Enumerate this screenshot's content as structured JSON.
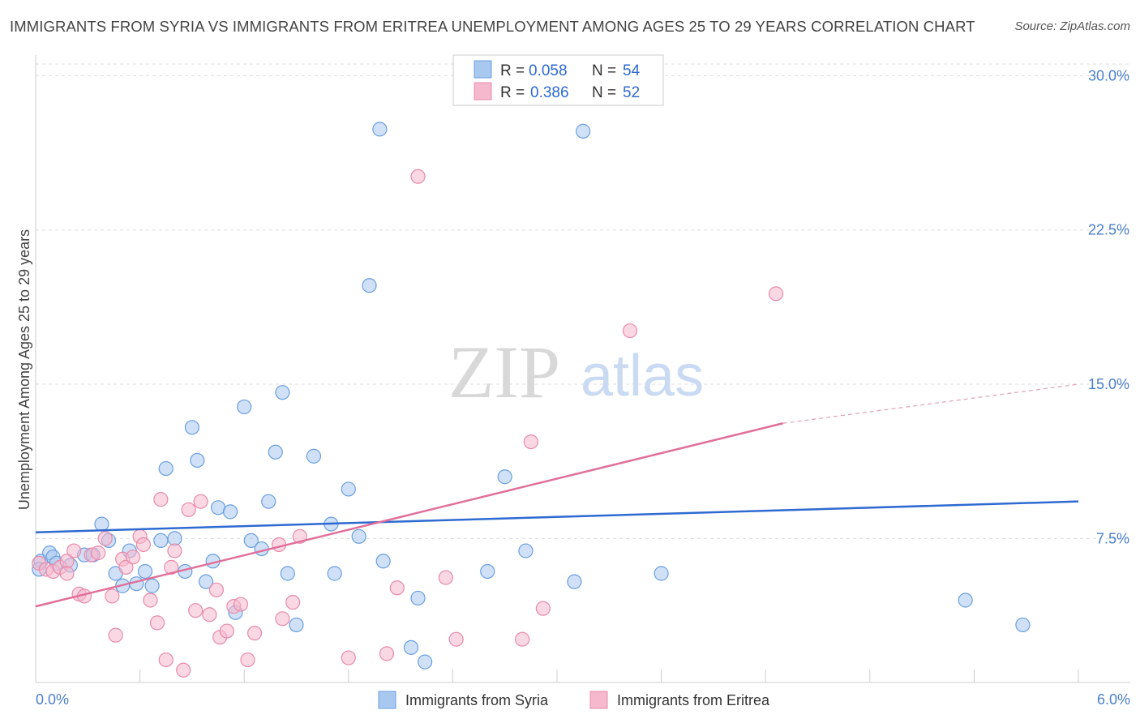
{
  "title": "IMMIGRANTS FROM SYRIA VS IMMIGRANTS FROM ERITREA UNEMPLOYMENT AMONG AGES 25 TO 29 YEARS CORRELATION CHART",
  "source": "Source: ZipAtlas.com",
  "watermark": {
    "zip": "ZIP",
    "atlas": "atlas"
  },
  "colors": {
    "syria_fill": "#a9c8f0",
    "syria_stroke": "#6a9fe0",
    "syria_line": "#2e6ad1",
    "eritrea_fill": "#f5b8cc",
    "eritrea_stroke": "#e88aaa",
    "eritrea_line": "#e0709a",
    "axis_text": "#4a7fc8",
    "grid": "#dddddd"
  },
  "legend": {
    "r_label": "R =",
    "n_label": "N =",
    "syria": {
      "r": "0.058",
      "n": "54"
    },
    "eritrea": {
      "r": "0.386",
      "n": "52"
    }
  },
  "chart_data": {
    "type": "scatter",
    "title": "IMMIGRANTS FROM SYRIA VS IMMIGRANTS FROM ERITREA UNEMPLOYMENT AMONG AGES 25 TO 29 YEARS CORRELATION CHART",
    "xlabel": "",
    "ylabel": "Unemployment Among Ages 25 to 29 years",
    "xlim": [
      0,
      6
    ],
    "ylim": [
      0.5,
      31
    ],
    "x_tick_labels": [
      {
        "value": 0,
        "label": "0.0%"
      },
      {
        "value": 6,
        "label": "6.0%"
      }
    ],
    "y_ticks": [
      {
        "value": 7.5,
        "label": "7.5%"
      },
      {
        "value": 15,
        "label": "15.0%"
      },
      {
        "value": 22.5,
        "label": "22.5%"
      },
      {
        "value": 30,
        "label": "30.0%"
      }
    ],
    "series": [
      {
        "name": "Immigrants from Syria",
        "r": 0.058,
        "n": 54,
        "trend": {
          "x0": 0,
          "y0": 7.8,
          "x1": 6,
          "y1": 9.3
        },
        "points": [
          [
            0.03,
            6.4
          ],
          [
            0.08,
            6.8
          ],
          [
            0.1,
            6.6
          ],
          [
            0.12,
            6.3
          ],
          [
            0.2,
            6.2
          ],
          [
            0.28,
            6.7
          ],
          [
            0.33,
            6.7
          ],
          [
            0.38,
            8.2
          ],
          [
            0.42,
            7.4
          ],
          [
            0.46,
            5.8
          ],
          [
            0.5,
            5.2
          ],
          [
            0.54,
            6.9
          ],
          [
            0.58,
            5.3
          ],
          [
            0.63,
            5.9
          ],
          [
            0.67,
            5.2
          ],
          [
            0.72,
            7.4
          ],
          [
            0.75,
            10.9
          ],
          [
            0.8,
            7.5
          ],
          [
            0.86,
            5.9
          ],
          [
            0.9,
            12.9
          ],
          [
            0.93,
            11.3
          ],
          [
            0.98,
            5.4
          ],
          [
            1.02,
            6.4
          ],
          [
            1.05,
            9.0
          ],
          [
            1.12,
            8.8
          ],
          [
            1.15,
            3.9
          ],
          [
            1.2,
            13.9
          ],
          [
            1.24,
            7.4
          ],
          [
            1.3,
            7.0
          ],
          [
            1.34,
            9.3
          ],
          [
            1.38,
            11.7
          ],
          [
            1.42,
            14.6
          ],
          [
            1.45,
            5.8
          ],
          [
            1.5,
            3.3
          ],
          [
            1.6,
            11.5
          ],
          [
            1.7,
            8.2
          ],
          [
            1.72,
            5.8
          ],
          [
            1.8,
            9.9
          ],
          [
            1.86,
            7.6
          ],
          [
            1.92,
            19.8
          ],
          [
            1.98,
            27.4
          ],
          [
            2.0,
            6.4
          ],
          [
            2.16,
            2.2
          ],
          [
            2.2,
            4.6
          ],
          [
            2.24,
            1.5
          ],
          [
            2.6,
            5.9
          ],
          [
            2.7,
            10.5
          ],
          [
            2.82,
            6.9
          ],
          [
            3.1,
            5.4
          ],
          [
            3.15,
            27.3
          ],
          [
            3.6,
            5.8
          ],
          [
            5.35,
            4.5
          ],
          [
            5.68,
            3.3
          ],
          [
            0.02,
            6.0
          ]
        ]
      },
      {
        "name": "Immigrants from Eritrea",
        "r": 0.386,
        "n": 52,
        "trend": {
          "x0": 0,
          "y0": 4.2,
          "x1": 4.3,
          "y1": 13.1
        },
        "trend_dashed": {
          "x0": 4.3,
          "y0": 13.1,
          "x1": 6,
          "y1": 15.0
        },
        "points": [
          [
            0.02,
            6.3
          ],
          [
            0.06,
            6.0
          ],
          [
            0.1,
            5.9
          ],
          [
            0.14,
            6.1
          ],
          [
            0.18,
            6.4
          ],
          [
            0.22,
            6.9
          ],
          [
            0.25,
            4.8
          ],
          [
            0.28,
            4.7
          ],
          [
            0.32,
            6.7
          ],
          [
            0.36,
            6.8
          ],
          [
            0.4,
            7.5
          ],
          [
            0.44,
            4.7
          ],
          [
            0.46,
            2.8
          ],
          [
            0.5,
            6.5
          ],
          [
            0.52,
            6.1
          ],
          [
            0.56,
            6.6
          ],
          [
            0.6,
            7.6
          ],
          [
            0.62,
            7.2
          ],
          [
            0.66,
            4.5
          ],
          [
            0.7,
            3.4
          ],
          [
            0.72,
            9.4
          ],
          [
            0.75,
            1.6
          ],
          [
            0.78,
            6.1
          ],
          [
            0.8,
            6.9
          ],
          [
            0.85,
            1.1
          ],
          [
            0.88,
            8.9
          ],
          [
            0.92,
            4.0
          ],
          [
            0.95,
            9.3
          ],
          [
            1.0,
            3.8
          ],
          [
            1.04,
            5.0
          ],
          [
            1.06,
            2.7
          ],
          [
            1.1,
            3.0
          ],
          [
            1.14,
            4.2
          ],
          [
            1.18,
            4.3
          ],
          [
            1.22,
            1.6
          ],
          [
            1.26,
            2.9
          ],
          [
            1.4,
            7.2
          ],
          [
            1.42,
            3.6
          ],
          [
            1.48,
            4.4
          ],
          [
            1.52,
            7.6
          ],
          [
            1.8,
            1.7
          ],
          [
            2.02,
            1.9
          ],
          [
            2.08,
            5.1
          ],
          [
            2.2,
            25.1
          ],
          [
            2.36,
            5.6
          ],
          [
            2.42,
            2.6
          ],
          [
            2.8,
            2.6
          ],
          [
            2.85,
            12.2
          ],
          [
            2.92,
            4.1
          ],
          [
            3.42,
            17.6
          ],
          [
            4.26,
            19.4
          ],
          [
            0.18,
            5.8
          ]
        ]
      }
    ]
  }
}
